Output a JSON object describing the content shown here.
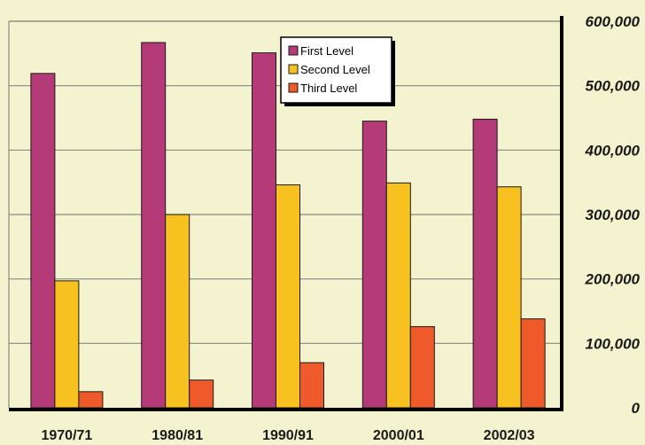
{
  "chart_data": {
    "type": "bar",
    "categories": [
      "1970/71",
      "1980/81",
      "1990/91",
      "2000/01",
      "2002/03"
    ],
    "series": [
      {
        "name": "First Level",
        "color": "#b43a78",
        "values": [
          519000,
          567000,
          551000,
          445000,
          448000
        ]
      },
      {
        "name": "Second Level",
        "color": "#f7c21f",
        "values": [
          197000,
          300000,
          346000,
          349000,
          343000
        ]
      },
      {
        "name": "Third Level",
        "color": "#ee5a2a",
        "values": [
          25000,
          43000,
          70000,
          126000,
          138000
        ]
      }
    ],
    "ylim": [
      0,
      600000
    ],
    "yticks": [
      "0",
      "100,000",
      "200,000",
      "300,000",
      "400,000",
      "500,000",
      "600,000"
    ],
    "y_axis_side": "right",
    "grid": true,
    "legend_position": "top-center",
    "background_color": "#f3f3cf",
    "plot_background_color": "#f3f3cf"
  }
}
